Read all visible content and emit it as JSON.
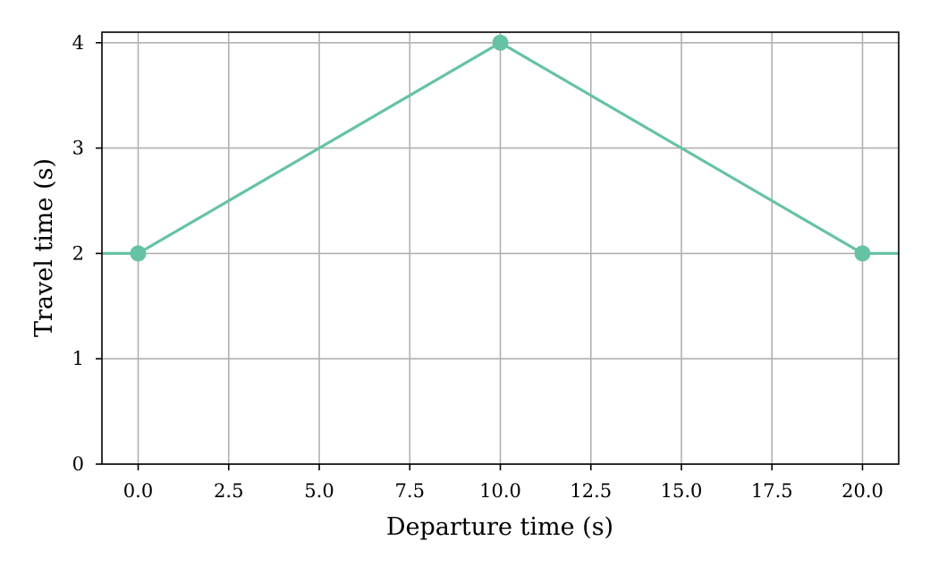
{
  "chart_data": {
    "type": "line",
    "title": "",
    "xlabel": "Departure time (s)",
    "ylabel": "Travel time (s)",
    "xlim": [
      -1.0,
      21.0
    ],
    "ylim": [
      0,
      4.1
    ],
    "xticks": [
      0.0,
      2.5,
      5.0,
      7.5,
      10.0,
      12.5,
      15.0,
      17.5,
      20.0
    ],
    "xtick_labels": [
      "0.0",
      "2.5",
      "5.0",
      "7.5",
      "10.0",
      "12.5",
      "15.0",
      "17.5",
      "20.0"
    ],
    "yticks": [
      0,
      1,
      2,
      3,
      4
    ],
    "ytick_labels": [
      "0",
      "1",
      "2",
      "3",
      "4"
    ],
    "grid": true,
    "legend": "none",
    "series": [
      {
        "color": "#66c2a5",
        "line": {
          "x": [
            -1.0,
            0.0,
            10.0,
            20.0,
            21.0
          ],
          "y": [
            2,
            2,
            4,
            2,
            2
          ]
        },
        "markers": {
          "x": [
            0.0,
            10.0,
            20.0
          ],
          "y": [
            2,
            4,
            2
          ]
        }
      }
    ]
  }
}
